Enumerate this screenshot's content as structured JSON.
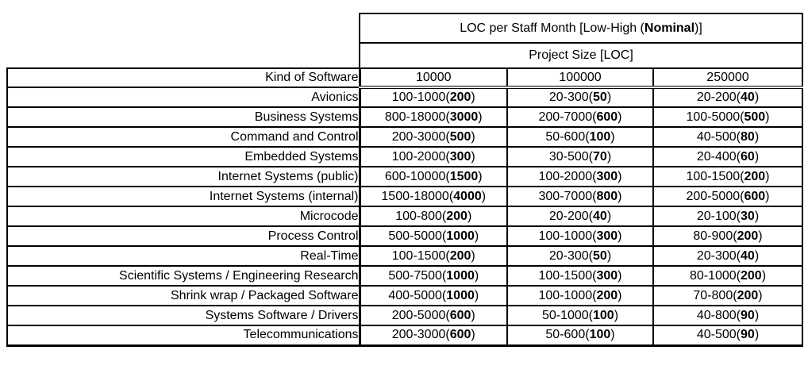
{
  "header": {
    "title_prefix": "LOC per Staff Month [Low-High (",
    "title_bold": "Nominal",
    "title_suffix": ")]",
    "subtitle": "Project Size [LOC]",
    "kind_col_header": "Kind of Software",
    "size_columns": [
      "10000",
      "100000",
      "250000"
    ]
  },
  "table": {
    "rows": [
      {
        "kind": "Avionics",
        "cells": [
          {
            "low_high": "100-1000",
            "nominal": "200"
          },
          {
            "low_high": "20-300",
            "nominal": "50"
          },
          {
            "low_high": "20-200",
            "nominal": "40"
          }
        ]
      },
      {
        "kind": "Business Systems",
        "cells": [
          {
            "low_high": "800-18000",
            "nominal": "3000"
          },
          {
            "low_high": "200-7000",
            "nominal": "600"
          },
          {
            "low_high": "100-5000",
            "nominal": "500"
          }
        ]
      },
      {
        "kind": "Command and Control",
        "cells": [
          {
            "low_high": "200-3000",
            "nominal": "500"
          },
          {
            "low_high": "50-600",
            "nominal": "100"
          },
          {
            "low_high": "40-500",
            "nominal": "80"
          }
        ]
      },
      {
        "kind": "Embedded Systems",
        "cells": [
          {
            "low_high": "100-2000",
            "nominal": "300"
          },
          {
            "low_high": "30-500",
            "nominal": "70"
          },
          {
            "low_high": "20-400",
            "nominal": "60"
          }
        ]
      },
      {
        "kind": "Internet Systems (public)",
        "cells": [
          {
            "low_high": "600-10000",
            "nominal": "1500"
          },
          {
            "low_high": "100-2000",
            "nominal": "300"
          },
          {
            "low_high": "100-1500",
            "nominal": "200"
          }
        ]
      },
      {
        "kind": "Internet Systems (internal)",
        "cells": [
          {
            "low_high": "1500-18000",
            "nominal": "4000"
          },
          {
            "low_high": "300-7000",
            "nominal": "800"
          },
          {
            "low_high": "200-5000",
            "nominal": "600"
          }
        ]
      },
      {
        "kind": "Microcode",
        "cells": [
          {
            "low_high": "100-800",
            "nominal": "200"
          },
          {
            "low_high": "20-200",
            "nominal": "40"
          },
          {
            "low_high": "20-100",
            "nominal": "30"
          }
        ]
      },
      {
        "kind": "Process Control",
        "cells": [
          {
            "low_high": "500-5000",
            "nominal": "1000"
          },
          {
            "low_high": "100-1000",
            "nominal": "300"
          },
          {
            "low_high": "80-900",
            "nominal": "200"
          }
        ]
      },
      {
        "kind": "Real-Time",
        "cells": [
          {
            "low_high": "100-1500",
            "nominal": "200"
          },
          {
            "low_high": "20-300",
            "nominal": "50"
          },
          {
            "low_high": "20-300",
            "nominal": "40"
          }
        ]
      },
      {
        "kind": "Scientific Systems / Engineering Research",
        "cells": [
          {
            "low_high": "500-7500",
            "nominal": "1000"
          },
          {
            "low_high": "100-1500",
            "nominal": "300"
          },
          {
            "low_high": "80-1000",
            "nominal": "200"
          }
        ]
      },
      {
        "kind": "Shrink wrap / Packaged Software",
        "cells": [
          {
            "low_high": "400-5000",
            "nominal": "1000"
          },
          {
            "low_high": "100-1000",
            "nominal": "200"
          },
          {
            "low_high": "70-800",
            "nominal": "200"
          }
        ]
      },
      {
        "kind": "Systems Software / Drivers",
        "cells": [
          {
            "low_high": "200-5000",
            "nominal": "600"
          },
          {
            "low_high": "50-1000",
            "nominal": "100"
          },
          {
            "low_high": "40-800",
            "nominal": "90"
          }
        ]
      },
      {
        "kind": "Telecommunications",
        "cells": [
          {
            "low_high": "200-3000",
            "nominal": "600"
          },
          {
            "low_high": "50-600",
            "nominal": "100"
          },
          {
            "low_high": "40-500",
            "nominal": "90"
          }
        ]
      }
    ]
  }
}
